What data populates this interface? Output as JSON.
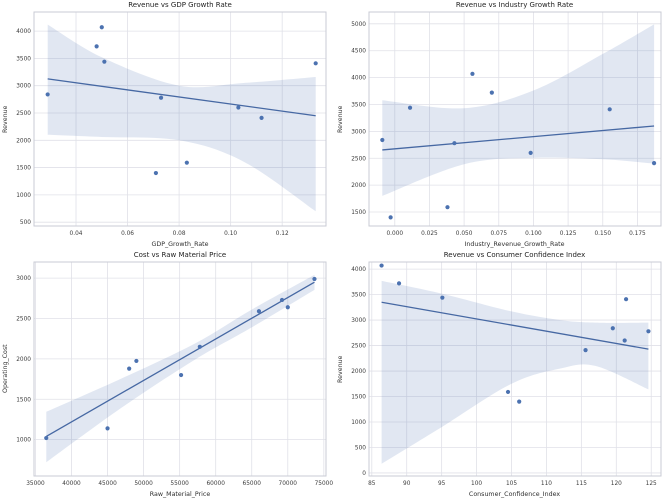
{
  "figure": {
    "background": "#ffffff",
    "grid_color": "#e0e1e8",
    "border_color": "#c9cbd4",
    "point_color": "#4c72b0",
    "line_color": "#4668a3",
    "band_color": "rgba(76,114,176,0.17)",
    "tick_color": "#3a3a3a"
  },
  "chart_data": [
    {
      "type": "scatter",
      "title": "Revenue vs GDP Growth Rate",
      "xlabel": "GDP_Growth_Rate",
      "ylabel": "Revenue",
      "xlim": [
        0.0237,
        0.137
      ],
      "ylim": [
        430,
        4350
      ],
      "x": [
        0.029,
        0.05,
        0.048,
        0.051,
        0.073,
        0.071,
        0.083,
        0.103,
        0.112,
        0.133
      ],
      "y": [
        2840,
        4070,
        3720,
        3440,
        2780,
        1400,
        1590,
        2600,
        2410,
        3410
      ],
      "xtick_values": [
        0.04,
        0.06,
        0.08,
        0.1,
        0.12
      ],
      "xtick_labels": [
        "0.04",
        "0.06",
        "0.08",
        "0.10",
        "0.12"
      ],
      "ytick_values": [
        500,
        1000,
        1500,
        2000,
        2500,
        3000,
        3500,
        4000
      ],
      "ytick_labels": [
        "500",
        "1000",
        "1500",
        "2000",
        "2500",
        "3000",
        "3500",
        "4000"
      ],
      "regression_line": {
        "x": [
          0.029,
          0.133
        ],
        "y": [
          3125,
          2450
        ]
      },
      "ci_band": {
        "x": [
          0.029,
          0.05,
          0.08,
          0.105,
          0.133
        ],
        "upper": [
          4120,
          3520,
          3000,
          3050,
          3160
        ],
        "lower": [
          2100,
          2060,
          2000,
          1610,
          700
        ]
      }
    },
    {
      "type": "scatter",
      "title": "Revenue vs Industry Growth Rate",
      "xlabel": "Industry_Revenue_Growth_Rate",
      "ylabel": "Revenue",
      "xlim": [
        -0.0186,
        0.192
      ],
      "ylim": [
        1240,
        5220
      ],
      "x": [
        -0.009,
        0.056,
        0.07,
        0.011,
        0.043,
        -0.003,
        0.038,
        0.098,
        0.187,
        0.155
      ],
      "y": [
        2840,
        4070,
        3720,
        3440,
        2780,
        1400,
        1590,
        2600,
        2410,
        3410
      ],
      "xtick_values": [
        0.0,
        0.025,
        0.05,
        0.075,
        0.1,
        0.125,
        0.15,
        0.175
      ],
      "xtick_labels": [
        "0.000",
        "0.025",
        "0.050",
        "0.075",
        "0.100",
        "0.125",
        "0.150",
        "0.175"
      ],
      "ytick_values": [
        1500,
        2000,
        2500,
        3000,
        3500,
        4000,
        4500,
        5000
      ],
      "ytick_labels": [
        "1500",
        "2000",
        "2500",
        "3000",
        "3500",
        "4000",
        "4500",
        "5000"
      ],
      "regression_line": {
        "x": [
          -0.009,
          0.187
        ],
        "y": [
          2655,
          3100
        ]
      },
      "ci_band": {
        "x": [
          -0.009,
          0.05,
          0.1,
          0.15,
          0.187
        ],
        "upper": [
          3580,
          3430,
          3760,
          4440,
          4990
        ],
        "lower": [
          1800,
          2390,
          2510,
          2480,
          2400
        ]
      }
    },
    {
      "type": "scatter",
      "title": "Cost vs Raw Material Price",
      "xlabel": "Raw_Material_Price",
      "ylabel": "Operating_Cost",
      "xlim": [
        34800,
        75300
      ],
      "ylim": [
        550,
        3200
      ],
      "x": [
        36500,
        45000,
        48000,
        49000,
        55200,
        57800,
        66000,
        69200,
        70000,
        73700
      ],
      "y": [
        1020,
        1140,
        1880,
        1975,
        1800,
        2150,
        2590,
        2730,
        2640,
        2990
      ],
      "xtick_values": [
        35000,
        40000,
        45000,
        50000,
        55000,
        60000,
        65000,
        70000,
        75000
      ],
      "xtick_labels": [
        "35000",
        "40000",
        "45000",
        "50000",
        "55000",
        "60000",
        "65000",
        "70000",
        "75000"
      ],
      "ytick_values": [
        1000,
        1500,
        2000,
        2500,
        3000
      ],
      "ytick_labels": [
        "1000",
        "1500",
        "2000",
        "2500",
        "3000"
      ],
      "regression_line": {
        "x": [
          36500,
          73700
        ],
        "y": [
          1040,
          2950
        ]
      },
      "ci_band": {
        "x": [
          36500,
          47000,
          57100,
          65000,
          73700
        ],
        "upper": [
          1345,
          1760,
          2190,
          2610,
          3040
        ],
        "lower": [
          720,
          1400,
          1990,
          2390,
          2855
        ]
      }
    },
    {
      "type": "scatter",
      "title": "Revenue vs Consumer Confidence Index",
      "xlabel": "Consumer_Confidence_Index",
      "ylabel": "Revenue",
      "xlim": [
        84.6,
        126.4
      ],
      "ylim": [
        -60,
        4140
      ],
      "x": [
        119.5,
        86.4,
        88.9,
        95.1,
        124.6,
        106.1,
        104.5,
        121.2,
        115.6,
        121.4
      ],
      "y": [
        2840,
        4070,
        3720,
        3440,
        2780,
        1400,
        1590,
        2600,
        2410,
        3410
      ],
      "xtick_values": [
        85,
        90,
        95,
        100,
        105,
        110,
        115,
        120,
        125
      ],
      "xtick_labels": [
        "85",
        "90",
        "95",
        "100",
        "105",
        "110",
        "115",
        "120",
        "125"
      ],
      "ytick_values": [
        0,
        500,
        1000,
        1500,
        2000,
        2500,
        3000,
        3500,
        4000
      ],
      "ytick_labels": [
        "0",
        "500",
        "1000",
        "1500",
        "2000",
        "2500",
        "3000",
        "3500",
        "4000"
      ],
      "regression_line": {
        "x": [
          86.4,
          124.6
        ],
        "y": [
          3350,
          2430
        ]
      },
      "ci_band": {
        "x": [
          86.4,
          95,
          105,
          112,
          117,
          124.6
        ],
        "upper": [
          3770,
          3520,
          3170,
          3000,
          2950,
          2950
        ],
        "lower": [
          180,
          900,
          1750,
          2050,
          2100,
          1640
        ]
      }
    }
  ]
}
